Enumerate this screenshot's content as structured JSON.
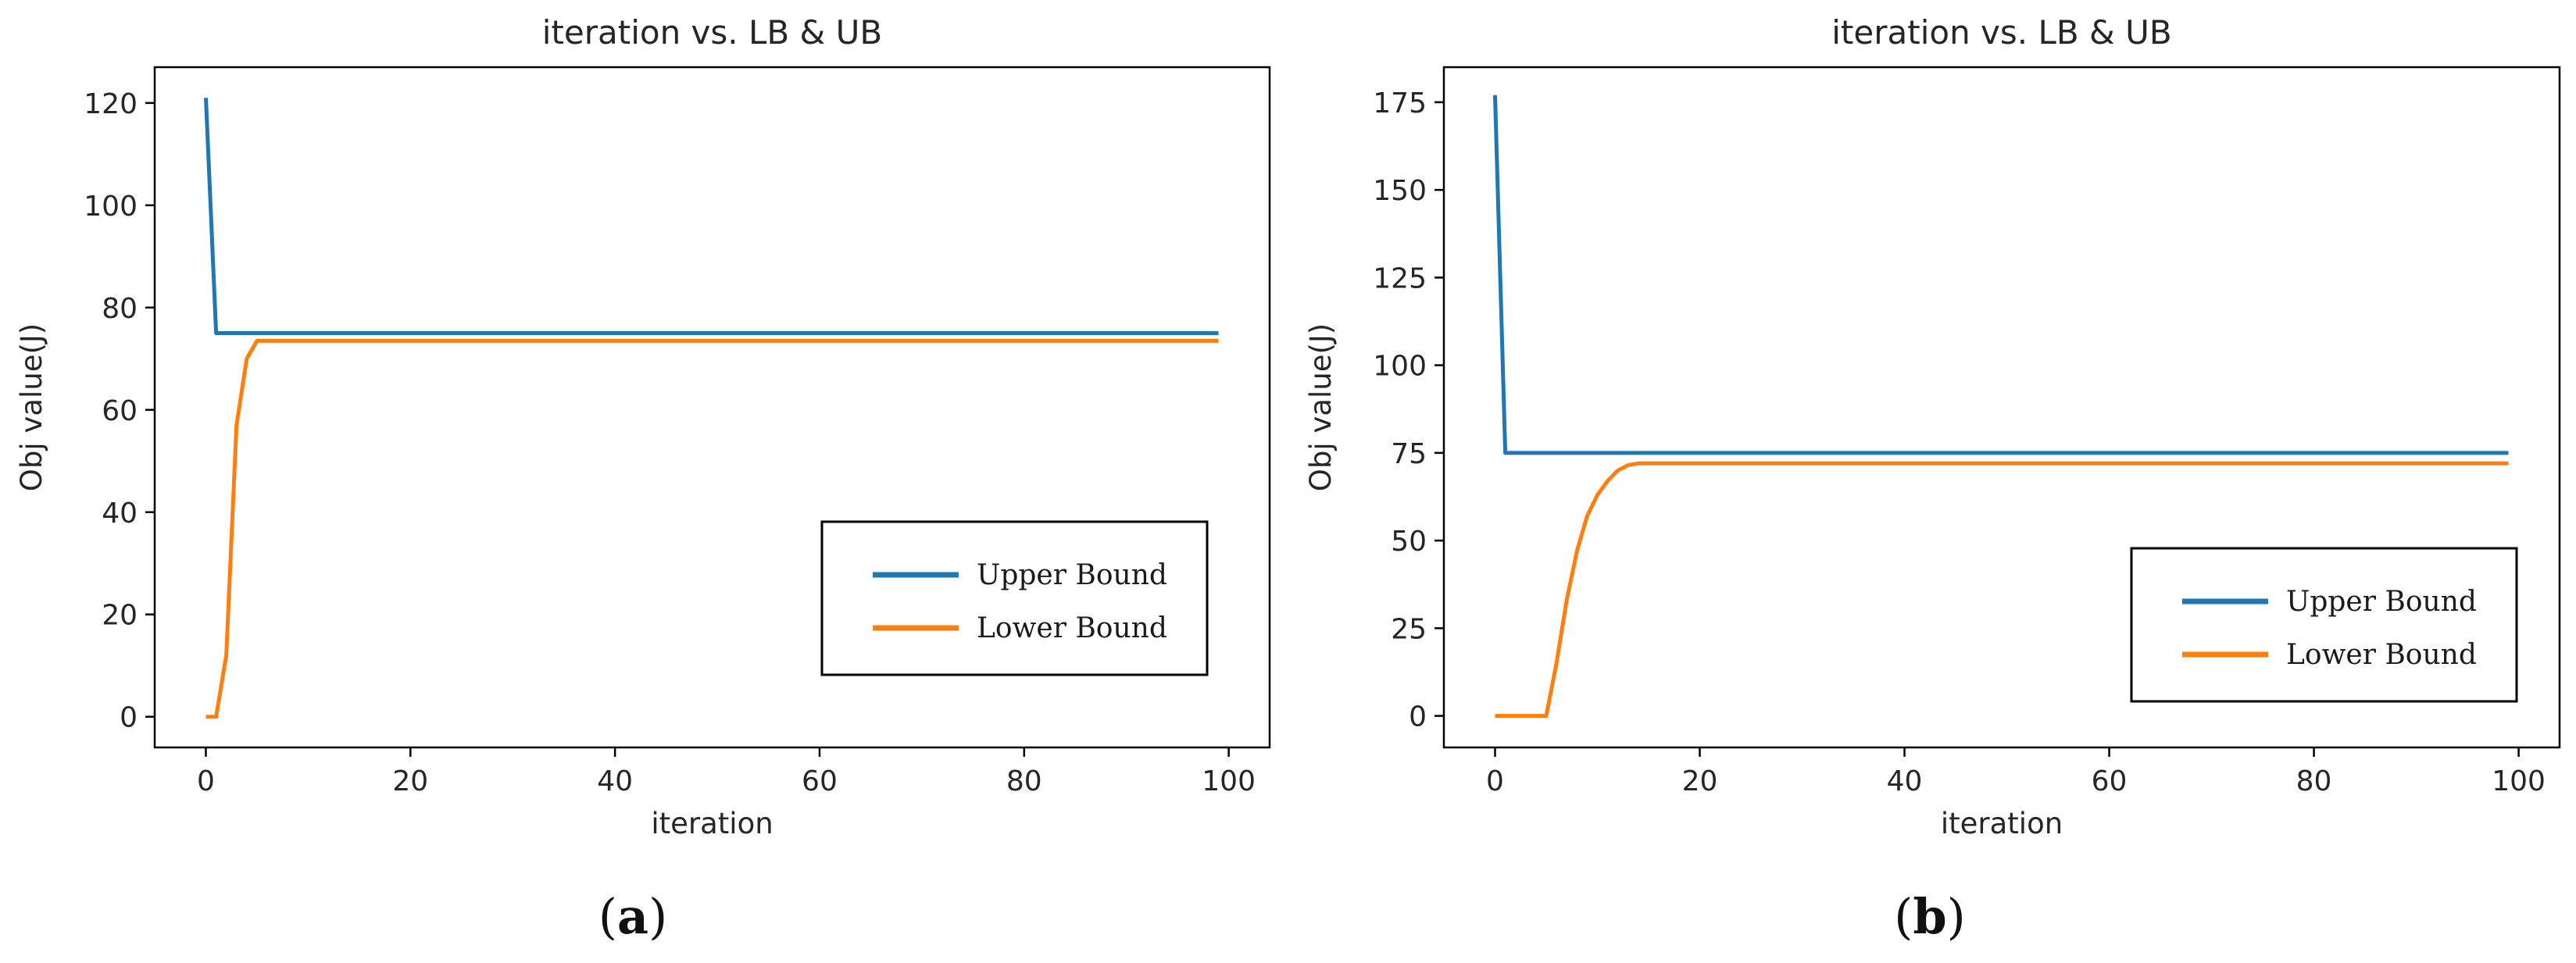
{
  "chart_data": [
    {
      "type": "line",
      "title": "iteration vs. LB & UB",
      "xlabel": "iteration",
      "ylabel": "Obj value(J)",
      "xlim": [
        -5,
        104
      ],
      "ylim": [
        -6,
        127
      ],
      "xticks": [
        0,
        20,
        40,
        60,
        80,
        100
      ],
      "yticks": [
        0,
        20,
        40,
        60,
        80,
        100,
        120
      ],
      "legend_position": "lower-right",
      "grid": false,
      "caption": {
        "open": "(",
        "letter": "a",
        "close": ")"
      },
      "series": [
        {
          "name": "Upper Bound",
          "color": "#1f77b4",
          "x": [
            0,
            1,
            99
          ],
          "y": [
            121,
            75,
            75
          ]
        },
        {
          "name": "Lower Bound",
          "color": "#ff7f0e",
          "x": [
            0,
            1,
            2,
            3,
            4,
            5,
            99
          ],
          "y": [
            0,
            0,
            12,
            57,
            70,
            73.5,
            73.5
          ]
        }
      ]
    },
    {
      "type": "line",
      "title": "iteration vs. LB & UB",
      "xlabel": "iteration",
      "ylabel": "Obj value(J)",
      "xlim": [
        -5,
        104
      ],
      "ylim": [
        -9,
        185
      ],
      "xticks": [
        0,
        20,
        40,
        60,
        80,
        100
      ],
      "yticks": [
        0,
        25,
        50,
        75,
        100,
        125,
        150,
        175
      ],
      "legend_position": "lower-right",
      "grid": false,
      "caption": {
        "open": "(",
        "letter": "b",
        "close": ")"
      },
      "series": [
        {
          "name": "Upper Bound",
          "color": "#1f77b4",
          "x": [
            0,
            1,
            99
          ],
          "y": [
            177,
            75,
            75
          ]
        },
        {
          "name": "Lower Bound",
          "color": "#ff7f0e",
          "x": [
            0,
            1,
            2,
            3,
            4,
            5,
            6,
            7,
            8,
            9,
            10,
            11,
            12,
            13,
            14,
            15,
            99
          ],
          "y": [
            0,
            0,
            0,
            0,
            0,
            0,
            15,
            33,
            47,
            57,
            63,
            67,
            70,
            71.5,
            72,
            72,
            72
          ]
        }
      ]
    }
  ]
}
